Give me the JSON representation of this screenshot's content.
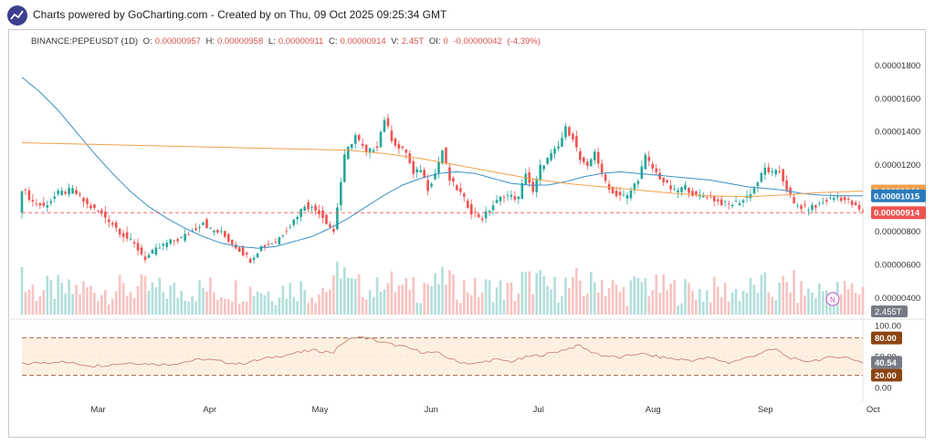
{
  "header": {
    "text": "Charts powered by GoCharting.com - Created by  on Thu, 09 Oct 2025 09:25:34 GMT"
  },
  "ohlc": {
    "symbol": "BINANCE:PEPEUSDT (1D)",
    "open_label": "O:",
    "open": "0.00000957",
    "high_label": "H:",
    "high": "0.00000958",
    "low_label": "L:",
    "low": "0.00000911",
    "close_label": "C:",
    "close": "0.00000914",
    "volume_label": "V:",
    "volume": "2.45T",
    "oi_label": "OI:",
    "oi": "0",
    "change": "-0.00000042",
    "change_pct": "(-4.39%)"
  },
  "colors": {
    "up": "#26a69a",
    "down": "#ef5350",
    "ma_blue": "#3b8fc4",
    "ma_orange": "#f0a04b",
    "rsi_line": "#c9827d",
    "rsi_band": "#fdf0e0",
    "level_line": "#8b4513"
  },
  "chart_data": {
    "type": "candlestick",
    "price_ticks": [
      "0.00001800",
      "0.00001600",
      "0.00001400",
      "0.00001200",
      "0.00000800",
      "0.00000600",
      "0.00000400"
    ],
    "price_tick_values": [
      1.8e-05,
      1.6e-05,
      1.4e-05,
      1.2e-05,
      8e-06,
      6e-06,
      4e-06
    ],
    "x_ticks": [
      "Mar",
      "Apr",
      "May",
      "Jun",
      "Jul",
      "Aug",
      "Sep",
      "Oct"
    ],
    "x_tick_days": [
      21,
      52,
      82,
      113,
      143,
      174,
      205,
      235
    ],
    "price_ylim": [
      3e-06,
      1.92e-05
    ],
    "markers": {
      "ma_orange": {
        "label": "0.00001044",
        "value": 1.044e-05
      },
      "ma_blue": {
        "label": "0.00001015",
        "value": 1.015e-05
      },
      "last_price": {
        "label": "0.00000914",
        "value": 9.14e-06
      }
    },
    "volume_label": "2.455T",
    "indicator_badge": "N",
    "price_keypoints": [
      [
        0,
        10.6
      ],
      [
        3,
        9.8
      ],
      [
        6,
        9.5
      ],
      [
        10,
        10.3
      ],
      [
        14,
        10.5
      ],
      [
        18,
        9.6
      ],
      [
        21,
        9.2
      ],
      [
        24,
        8.7
      ],
      [
        27,
        8.0
      ],
      [
        31,
        7.2
      ],
      [
        34,
        6.4
      ],
      [
        37,
        6.9
      ],
      [
        40,
        7.3
      ],
      [
        44,
        7.6
      ],
      [
        48,
        8.2
      ],
      [
        50,
        8.6
      ],
      [
        52,
        8.1
      ],
      [
        55,
        7.9
      ],
      [
        58,
        7.3
      ],
      [
        61,
        6.7
      ],
      [
        63,
        6.3
      ],
      [
        66,
        7.1
      ],
      [
        70,
        7.4
      ],
      [
        74,
        8.4
      ],
      [
        78,
        9.6
      ],
      [
        82,
        9.2
      ],
      [
        84,
        8.6
      ],
      [
        86,
        8.0
      ],
      [
        88,
        11.0
      ],
      [
        89,
        12.5
      ],
      [
        90,
        13.0
      ],
      [
        92,
        13.8
      ],
      [
        95,
        12.7
      ],
      [
        98,
        13.2
      ],
      [
        100,
        14.8
      ],
      [
        102,
        13.6
      ],
      [
        104,
        13.0
      ],
      [
        106,
        12.8
      ],
      [
        108,
        11.4
      ],
      [
        110,
        11.8
      ],
      [
        112,
        10.6
      ],
      [
        114,
        11.5
      ],
      [
        116,
        12.9
      ],
      [
        118,
        11.1
      ],
      [
        121,
        10.3
      ],
      [
        124,
        9.2
      ],
      [
        127,
        8.8
      ],
      [
        130,
        9.6
      ],
      [
        133,
        10.2
      ],
      [
        137,
        10.0
      ],
      [
        139,
        11.6
      ],
      [
        141,
        10.3
      ],
      [
        143,
        11.9
      ],
      [
        146,
        12.6
      ],
      [
        148,
        13.1
      ],
      [
        150,
        14.2
      ],
      [
        152,
        13.7
      ],
      [
        154,
        12.3
      ],
      [
        156,
        11.8
      ],
      [
        158,
        12.9
      ],
      [
        160,
        11.4
      ],
      [
        163,
        10.3
      ],
      [
        167,
        10.1
      ],
      [
        170,
        11.2
      ],
      [
        172,
        12.5
      ],
      [
        174,
        11.8
      ],
      [
        177,
        11.0
      ],
      [
        180,
        10.4
      ],
      [
        183,
        10.7
      ],
      [
        186,
        10.1
      ],
      [
        189,
        10.2
      ],
      [
        192,
        9.8
      ],
      [
        195,
        9.6
      ],
      [
        199,
        9.9
      ],
      [
        202,
        10.6
      ],
      [
        205,
        11.8
      ],
      [
        207,
        11.5
      ],
      [
        209,
        11.6
      ],
      [
        211,
        10.6
      ],
      [
        213,
        9.6
      ],
      [
        216,
        9.4
      ],
      [
        219,
        9.5
      ],
      [
        222,
        9.9
      ],
      [
        225,
        10.1
      ],
      [
        228,
        9.8
      ],
      [
        232,
        9.14
      ]
    ],
    "ma_blue_keypoints": [
      [
        0,
        17.3
      ],
      [
        5,
        16.4
      ],
      [
        10,
        15.3
      ],
      [
        15,
        14.0
      ],
      [
        20,
        12.7
      ],
      [
        25,
        11.5
      ],
      [
        30,
        10.4
      ],
      [
        35,
        9.5
      ],
      [
        40,
        8.8
      ],
      [
        45,
        8.2
      ],
      [
        50,
        7.7
      ],
      [
        55,
        7.3
      ],
      [
        60,
        7.1
      ],
      [
        65,
        7.0
      ],
      [
        70,
        7.1
      ],
      [
        75,
        7.4
      ],
      [
        80,
        7.7
      ],
      [
        85,
        8.2
      ],
      [
        90,
        8.8
      ],
      [
        95,
        9.5
      ],
      [
        100,
        10.2
      ],
      [
        105,
        10.8
      ],
      [
        110,
        11.2
      ],
      [
        115,
        11.5
      ],
      [
        120,
        11.6
      ],
      [
        125,
        11.5
      ],
      [
        130,
        11.2
      ],
      [
        135,
        10.9
      ],
      [
        140,
        10.8
      ],
      [
        145,
        10.8
      ],
      [
        150,
        11.0
      ],
      [
        155,
        11.3
      ],
      [
        160,
        11.5
      ],
      [
        165,
        11.6
      ],
      [
        170,
        11.5
      ],
      [
        175,
        11.4
      ],
      [
        180,
        11.3
      ],
      [
        185,
        11.2
      ],
      [
        190,
        11.1
      ],
      [
        195,
        10.9
      ],
      [
        200,
        10.7
      ],
      [
        205,
        10.6
      ],
      [
        210,
        10.5
      ],
      [
        215,
        10.3
      ],
      [
        220,
        10.2
      ],
      [
        225,
        10.15
      ],
      [
        232,
        10.15
      ]
    ],
    "ma_orange_keypoints": [
      [
        0,
        13.35
      ],
      [
        10,
        13.3
      ],
      [
        20,
        13.25
      ],
      [
        30,
        13.2
      ],
      [
        40,
        13.15
      ],
      [
        50,
        13.1
      ],
      [
        60,
        13.05
      ],
      [
        70,
        13.0
      ],
      [
        80,
        12.95
      ],
      [
        90,
        12.9
      ],
      [
        100,
        12.7
      ],
      [
        110,
        12.4
      ],
      [
        120,
        12.0
      ],
      [
        130,
        11.6
      ],
      [
        140,
        11.2
      ],
      [
        150,
        10.9
      ],
      [
        160,
        10.7
      ],
      [
        170,
        10.5
      ],
      [
        180,
        10.3
      ],
      [
        190,
        10.15
      ],
      [
        200,
        10.1
      ],
      [
        210,
        10.2
      ],
      [
        220,
        10.35
      ],
      [
        232,
        10.44
      ]
    ],
    "rsi": {
      "ticks": [
        "100.00",
        "50.00",
        "0.00"
      ],
      "tick_values": [
        100,
        50,
        0
      ],
      "upper_level": "80.00",
      "upper_value": 80,
      "lower_level": "20.00",
      "lower_value": 20,
      "current": "40.54",
      "current_value": 40.54,
      "keypoints": [
        [
          0,
          38
        ],
        [
          10,
          42
        ],
        [
          20,
          35
        ],
        [
          30,
          40
        ],
        [
          40,
          37
        ],
        [
          50,
          46
        ],
        [
          60,
          38
        ],
        [
          70,
          50
        ],
        [
          80,
          60
        ],
        [
          86,
          57
        ],
        [
          88,
          70
        ],
        [
          92,
          82
        ],
        [
          95,
          80
        ],
        [
          100,
          72
        ],
        [
          105,
          66
        ],
        [
          110,
          58
        ],
        [
          115,
          55
        ],
        [
          120,
          42
        ],
        [
          125,
          38
        ],
        [
          130,
          45
        ],
        [
          135,
          42
        ],
        [
          140,
          50
        ],
        [
          145,
          54
        ],
        [
          150,
          62
        ],
        [
          154,
          68
        ],
        [
          156,
          60
        ],
        [
          160,
          52
        ],
        [
          165,
          48
        ],
        [
          170,
          55
        ],
        [
          175,
          50
        ],
        [
          180,
          46
        ],
        [
          185,
          44
        ],
        [
          190,
          48
        ],
        [
          195,
          40
        ],
        [
          200,
          48
        ],
        [
          205,
          58
        ],
        [
          208,
          62
        ],
        [
          211,
          50
        ],
        [
          215,
          42
        ],
        [
          220,
          45
        ],
        [
          225,
          50
        ],
        [
          228,
          48
        ],
        [
          232,
          40.54
        ]
      ]
    }
  }
}
